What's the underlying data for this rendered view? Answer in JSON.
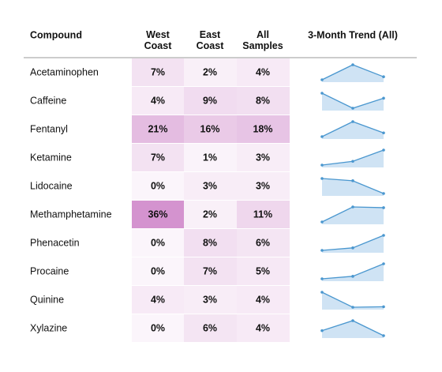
{
  "table": {
    "columns": [
      "Compound",
      "West Coast",
      "East Coast",
      "All Samples",
      "3-Month Trend (All)"
    ],
    "heat_color": "#b03aa8",
    "trend_line_color": "#4a97cf",
    "trend_fill_color": "#cfe3f4",
    "rows": [
      {
        "compound": "Acetaminophen",
        "values": [
          7,
          2,
          4
        ],
        "value_labels": [
          "7%",
          "2%",
          "4%"
        ],
        "trend": [
          3,
          5,
          3.4
        ]
      },
      {
        "compound": "Caffeine",
        "values": [
          4,
          9,
          8
        ],
        "value_labels": [
          "4%",
          "9%",
          "8%"
        ],
        "trend": [
          9,
          6,
          8
        ]
      },
      {
        "compound": "Fentanyl",
        "values": [
          21,
          16,
          18
        ],
        "value_labels": [
          "21%",
          "16%",
          "18%"
        ],
        "trend": [
          15,
          19,
          16
        ]
      },
      {
        "compound": "Ketamine",
        "values": [
          7,
          1,
          3
        ],
        "value_labels": [
          "7%",
          "1%",
          "3%"
        ],
        "trend": [
          2,
          2.5,
          4
        ]
      },
      {
        "compound": "Lidocaine",
        "values": [
          0,
          3,
          3
        ],
        "value_labels": [
          "0%",
          "3%",
          "3%"
        ],
        "trend": [
          4,
          3.7,
          2
        ]
      },
      {
        "compound": "Methamphetamine",
        "values": [
          36,
          2,
          11
        ],
        "value_labels": [
          "36%",
          "2%",
          "11%"
        ],
        "trend": [
          8,
          12,
          11.8
        ]
      },
      {
        "compound": "Phenacetin",
        "values": [
          0,
          8,
          6
        ],
        "value_labels": [
          "0%",
          "8%",
          "6%"
        ],
        "trend": [
          5,
          5.5,
          8
        ]
      },
      {
        "compound": "Procaine",
        "values": [
          0,
          7,
          5
        ],
        "value_labels": [
          "0%",
          "7%",
          "5%"
        ],
        "trend": [
          4,
          4.5,
          7
        ]
      },
      {
        "compound": "Quinine",
        "values": [
          4,
          3,
          4
        ],
        "value_labels": [
          "4%",
          "3%",
          "4%"
        ],
        "trend": [
          6,
          3,
          3.1
        ]
      },
      {
        "compound": "Xylazine",
        "values": [
          0,
          6,
          4
        ],
        "value_labels": [
          "0%",
          "6%",
          "4%"
        ],
        "trend": [
          3,
          5,
          2
        ]
      }
    ]
  }
}
